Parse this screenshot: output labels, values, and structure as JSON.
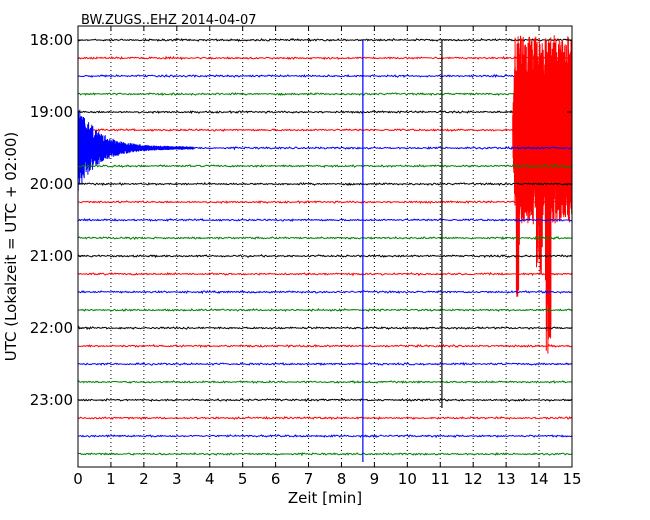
{
  "chart_data": {
    "type": "line",
    "title": "BW.ZUGS..EHZ 2014-04-07",
    "xlabel": "Zeit  [min]",
    "ylabel": "UTC (Lokalzeit = UTC + 02:00)",
    "xlim": [
      0,
      15
    ],
    "x_ticks": [
      "0",
      "1",
      "2",
      "3",
      "4",
      "5",
      "6",
      "7",
      "8",
      "9",
      "10",
      "11",
      "12",
      "13",
      "14",
      "15"
    ],
    "y_tick_labels": [
      "18:00",
      "19:00",
      "20:00",
      "21:00",
      "22:00",
      "23:00"
    ],
    "grid": "vertical dotted",
    "trace_colors": [
      "#000000",
      "#ff0000",
      "#0000ff",
      "#008000"
    ],
    "trace_count": 24,
    "trace_interval_min": 15,
    "series": [
      {
        "start": "18:00",
        "color": "#000000"
      },
      {
        "start": "18:15",
        "color": "#ff0000"
      },
      {
        "start": "18:30",
        "color": "#0000ff"
      },
      {
        "start": "18:45",
        "color": "#008000"
      },
      {
        "start": "19:00",
        "color": "#000000"
      },
      {
        "start": "19:15",
        "color": "#ff0000",
        "event": {
          "x_min": 13.2,
          "x_max": 15.0,
          "amplitude": "high"
        }
      },
      {
        "start": "19:30",
        "color": "#0000ff",
        "event": {
          "x_min": 0.0,
          "x_max": 3.5,
          "amplitude": "decaying"
        }
      },
      {
        "start": "19:45",
        "color": "#008000"
      },
      {
        "start": "20:00",
        "color": "#000000"
      },
      {
        "start": "20:15",
        "color": "#ff0000"
      },
      {
        "start": "20:30",
        "color": "#0000ff"
      },
      {
        "start": "20:45",
        "color": "#008000"
      },
      {
        "start": "21:00",
        "color": "#000000"
      },
      {
        "start": "21:15",
        "color": "#ff0000"
      },
      {
        "start": "21:30",
        "color": "#0000ff"
      },
      {
        "start": "21:45",
        "color": "#008000"
      },
      {
        "start": "22:00",
        "color": "#000000"
      },
      {
        "start": "22:15",
        "color": "#ff0000"
      },
      {
        "start": "22:30",
        "color": "#0000ff"
      },
      {
        "start": "22:45",
        "color": "#008000"
      },
      {
        "start": "23:00",
        "color": "#000000"
      },
      {
        "start": "23:15",
        "color": "#ff0000"
      },
      {
        "start": "23:30",
        "color": "#0000ff"
      },
      {
        "start": "23:45",
        "color": "#008000"
      }
    ],
    "spikes": [
      {
        "x": 8.65,
        "from": "18:00",
        "to": "23:45",
        "color": "#0000ff"
      },
      {
        "x": 11.05,
        "from": "18:00",
        "to": "23:00",
        "color": "#000000"
      }
    ]
  }
}
